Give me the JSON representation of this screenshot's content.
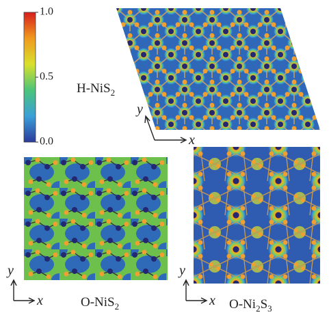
{
  "colorbar": {
    "lim": [
      0,
      1
    ],
    "ticks": [
      {
        "value": 1,
        "label": "1.0"
      },
      {
        "value": 0.5,
        "label": "0.5"
      },
      {
        "value": 0,
        "label": "0.0"
      }
    ],
    "colors": [
      "#2b3a9c",
      "#3aa0d8",
      "#4cc47a",
      "#d9e02c",
      "#f09a1e",
      "#d51e1e"
    ]
  },
  "panels": [
    {
      "label": "H-NiS",
      "sub": "2",
      "x_axis": "x",
      "y_axis": "y"
    },
    {
      "label": "O-NiS",
      "sub": "2",
      "x_axis": "x",
      "y_axis": "y"
    },
    {
      "label": "O-Ni",
      "sub": "2",
      "label_tail": "S",
      "sub_tail": "3",
      "x_axis": "x",
      "y_axis": "y"
    }
  ]
}
